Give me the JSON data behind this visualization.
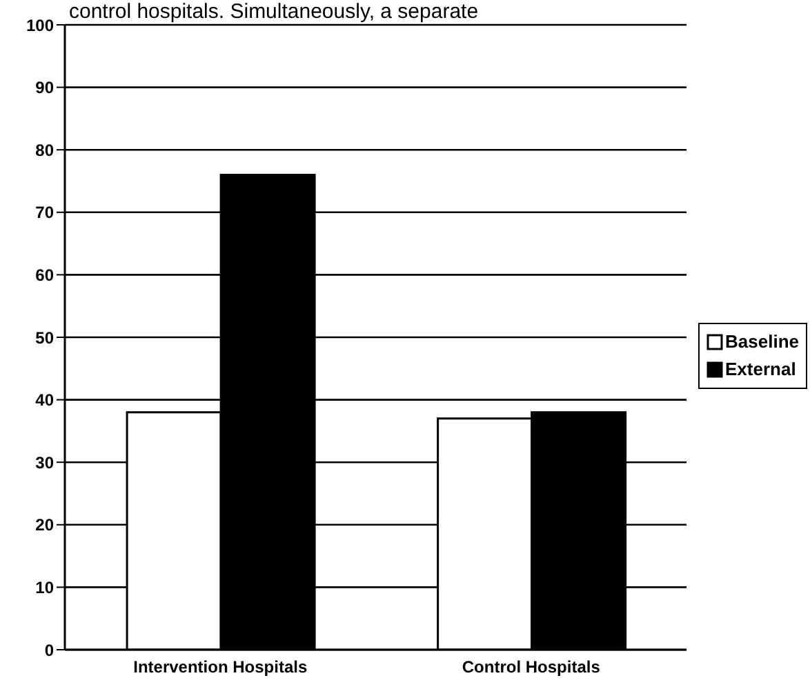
{
  "chart_data": {
    "type": "bar",
    "categories": [
      "Intervention Hospitals",
      "Control Hospitals"
    ],
    "series": [
      {
        "name": "Baseline",
        "color": "#ffffff",
        "values": [
          38,
          37
        ]
      },
      {
        "name": "External",
        "color": "#000000",
        "values": [
          76,
          38
        ]
      }
    ],
    "ylim": [
      0,
      100
    ],
    "yticks": [
      0,
      10,
      20,
      30,
      40,
      50,
      60,
      70,
      80,
      90,
      100
    ],
    "grid": "y",
    "legend": "right",
    "annotations": [
      "control hospitals. Simultaneously, a separate"
    ]
  }
}
